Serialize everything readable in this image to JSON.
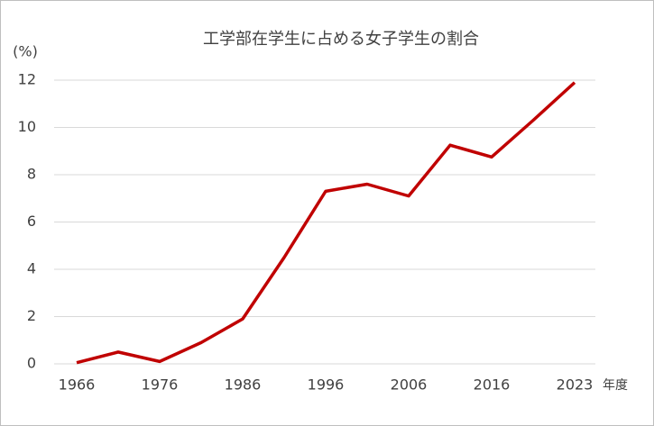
{
  "chart_data": {
    "type": "line",
    "title": "工学部在学生に占める女子学生の割合",
    "y_unit_label": "(%)",
    "x_axis_label": "年度",
    "categories": [
      "1966",
      null,
      "1976",
      null,
      "1986",
      null,
      "1996",
      null,
      "2006",
      null,
      "2016",
      null,
      "2023"
    ],
    "series": [
      {
        "name": "女子学生の割合",
        "color": "#c00000",
        "values": [
          0.05,
          0.5,
          0.1,
          0.9,
          1.9,
          4.5,
          7.3,
          7.6,
          7.1,
          9.25,
          8.75,
          10.3,
          11.9
        ]
      }
    ],
    "ylim": [
      0,
      12
    ],
    "yticks": [
      0,
      2,
      4,
      6,
      8,
      10,
      12
    ],
    "grid": true
  }
}
